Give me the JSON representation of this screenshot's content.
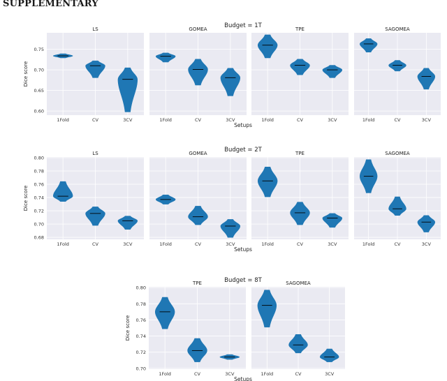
{
  "page": {
    "heading": "SUPPLEMENTARY"
  },
  "colors": {
    "violin": "#1f77b4",
    "panel_bg": "#eaeaf2",
    "grid": "#ffffff",
    "median": "#000000"
  },
  "chart_data": [
    {
      "type": "violin",
      "title": "Budget = 1T",
      "xlabel": "Setups",
      "ylabel": "Dice score",
      "categories": [
        "1Fold",
        "CV",
        "3CV"
      ],
      "yticks": [
        "0.60",
        "0.65",
        "0.70",
        "0.75"
      ],
      "ylim": [
        0.59,
        0.79
      ],
      "panels": [
        {
          "name": "LS",
          "groups": [
            {
              "min": 0.729,
              "max": 0.739,
              "median": 0.734
            },
            {
              "min": 0.681,
              "max": 0.722,
              "median": 0.71
            },
            {
              "min": 0.598,
              "max": 0.705,
              "median": 0.677
            }
          ]
        },
        {
          "name": "GOMEA",
          "groups": [
            {
              "min": 0.719,
              "max": 0.741,
              "median": 0.733
            },
            {
              "min": 0.663,
              "max": 0.726,
              "median": 0.701
            },
            {
              "min": 0.637,
              "max": 0.704,
              "median": 0.681
            }
          ]
        },
        {
          "name": "TPE",
          "groups": [
            {
              "min": 0.729,
              "max": 0.785,
              "median": 0.76
            },
            {
              "min": 0.688,
              "max": 0.726,
              "median": 0.711
            },
            {
              "min": 0.681,
              "max": 0.711,
              "median": 0.7
            }
          ]
        },
        {
          "name": "SAGOMEA",
          "groups": [
            {
              "min": 0.743,
              "max": 0.776,
              "median": 0.763
            },
            {
              "min": 0.697,
              "max": 0.723,
              "median": 0.711
            },
            {
              "min": 0.653,
              "max": 0.704,
              "median": 0.684
            }
          ]
        }
      ]
    },
    {
      "type": "violin",
      "title": "Budget = 2T",
      "xlabel": "Setups",
      "ylabel": "Dice score",
      "categories": [
        "1Fold",
        "CV",
        "3CV"
      ],
      "yticks": [
        "0.68",
        "0.70",
        "0.72",
        "0.74",
        "0.76",
        "0.78",
        "0.80"
      ],
      "ylim": [
        0.677,
        0.801
      ],
      "panels": [
        {
          "name": "LS",
          "groups": [
            {
              "min": 0.734,
              "max": 0.764,
              "median": 0.742
            },
            {
              "min": 0.698,
              "max": 0.726,
              "median": 0.716
            },
            {
              "min": 0.692,
              "max": 0.712,
              "median": 0.705
            }
          ]
        },
        {
          "name": "GOMEA",
          "groups": [
            {
              "min": 0.73,
              "max": 0.744,
              "median": 0.737
            },
            {
              "min": 0.699,
              "max": 0.727,
              "median": 0.711
            },
            {
              "min": 0.68,
              "max": 0.707,
              "median": 0.697
            }
          ]
        },
        {
          "name": "TPE",
          "groups": [
            {
              "min": 0.741,
              "max": 0.786,
              "median": 0.765
            },
            {
              "min": 0.699,
              "max": 0.733,
              "median": 0.717
            },
            {
              "min": 0.695,
              "max": 0.716,
              "median": 0.709
            }
          ]
        },
        {
          "name": "SAGOMEA",
          "groups": [
            {
              "min": 0.747,
              "max": 0.797,
              "median": 0.772
            },
            {
              "min": 0.713,
              "max": 0.741,
              "median": 0.723
            },
            {
              "min": 0.688,
              "max": 0.713,
              "median": 0.703
            }
          ]
        }
      ]
    },
    {
      "type": "violin",
      "title": "Budget = 8T",
      "xlabel": "Setups",
      "ylabel": "Dice score",
      "categories": [
        "1Fold",
        "CV",
        "3CV"
      ],
      "yticks": [
        "0.70",
        "0.72",
        "0.74",
        "0.76",
        "0.78",
        "0.80"
      ],
      "ylim": [
        0.699,
        0.801
      ],
      "panels": [
        {
          "name": "TPE",
          "groups": [
            {
              "min": 0.749,
              "max": 0.788,
              "median": 0.77
            },
            {
              "min": 0.708,
              "max": 0.737,
              "median": 0.722
            },
            {
              "min": 0.711,
              "max": 0.717,
              "median": 0.714
            }
          ]
        },
        {
          "name": "SAGOMEA",
          "groups": [
            {
              "min": 0.751,
              "max": 0.797,
              "median": 0.778
            },
            {
              "min": 0.719,
              "max": 0.742,
              "median": 0.729
            },
            {
              "min": 0.708,
              "max": 0.724,
              "median": 0.714
            }
          ]
        }
      ]
    }
  ]
}
